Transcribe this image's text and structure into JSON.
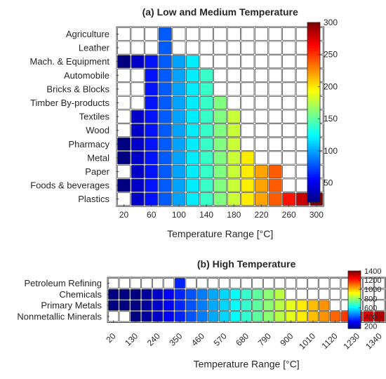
{
  "colors": {
    "empty": "#ffffff",
    "cell_border": "#555555",
    "axis": "#262626",
    "colormap": "jet"
  },
  "chart_data": [
    {
      "type": "heatmap",
      "title": "(a) Low and Medium Temperature",
      "xlabel": "Temperature Range [°C]",
      "ylabel": "",
      "x_values": [
        20,
        40,
        60,
        80,
        100,
        120,
        140,
        160,
        180,
        200,
        220,
        240,
        260,
        280,
        300
      ],
      "x_tick_labels": [
        "20",
        "60",
        "100",
        "140",
        "180",
        "220",
        "260",
        "300"
      ],
      "x_tick_every": 2,
      "x_tick_rotation": 0,
      "rows": [
        "Agriculture",
        "Leather",
        "Mach. & Equipment",
        "Automobile",
        "Bricks & Blocks",
        "Timber By-products",
        "Textiles",
        "Wood",
        "Pharmacy",
        "Metal",
        "Paper",
        "Foods & beverages",
        "Plastics"
      ],
      "row_ranges": [
        [
          80,
          80
        ],
        [
          80,
          80
        ],
        [
          20,
          120
        ],
        [
          60,
          140
        ],
        [
          60,
          140
        ],
        [
          60,
          160
        ],
        [
          40,
          180
        ],
        [
          40,
          180
        ],
        [
          20,
          180
        ],
        [
          20,
          200
        ],
        [
          40,
          240
        ],
        [
          20,
          240
        ],
        [
          40,
          300
        ]
      ],
      "value_rule": "each filled cell value equals its temperature column",
      "colorbar": {
        "min": 20,
        "max": 300,
        "ticks": [
          50,
          100,
          150,
          200,
          250,
          300
        ],
        "tick_labels": [
          "50",
          "100",
          "150",
          "200",
          "250",
          "300"
        ]
      }
    },
    {
      "type": "heatmap",
      "title": "(b) High Temperature",
      "xlabel": "Temperature Range [°C]",
      "ylabel": "",
      "x_values": [
        20,
        75,
        130,
        185,
        240,
        295,
        350,
        405,
        460,
        515,
        570,
        625,
        680,
        735,
        790,
        845,
        900,
        955,
        1010,
        1065,
        1120,
        1175,
        1230,
        1285,
        1340
      ],
      "x_tick_labels": [
        "20",
        "130",
        "240",
        "350",
        "460",
        "570",
        "680",
        "790",
        "900",
        "1010",
        "1120",
        "1230",
        "1340"
      ],
      "x_tick_every": 2,
      "x_tick_rotation": -45,
      "rows": [
        "Petroleum Refining",
        "Chemicals",
        "Primary Metals",
        "Nonmetallic Minerals"
      ],
      "row_ranges": [
        [
          350,
          350
        ],
        [
          20,
          845
        ],
        [
          20,
          1065
        ],
        [
          130,
          1340
        ]
      ],
      "value_rule": "each filled cell value equals its temperature column",
      "colorbar": {
        "min": 150,
        "max": 1400,
        "ticks": [
          200,
          400,
          600,
          800,
          1000,
          1200,
          1400
        ],
        "tick_labels": [
          "200",
          "400",
          "600",
          "800",
          "1000",
          "1200",
          "1400"
        ]
      }
    }
  ]
}
